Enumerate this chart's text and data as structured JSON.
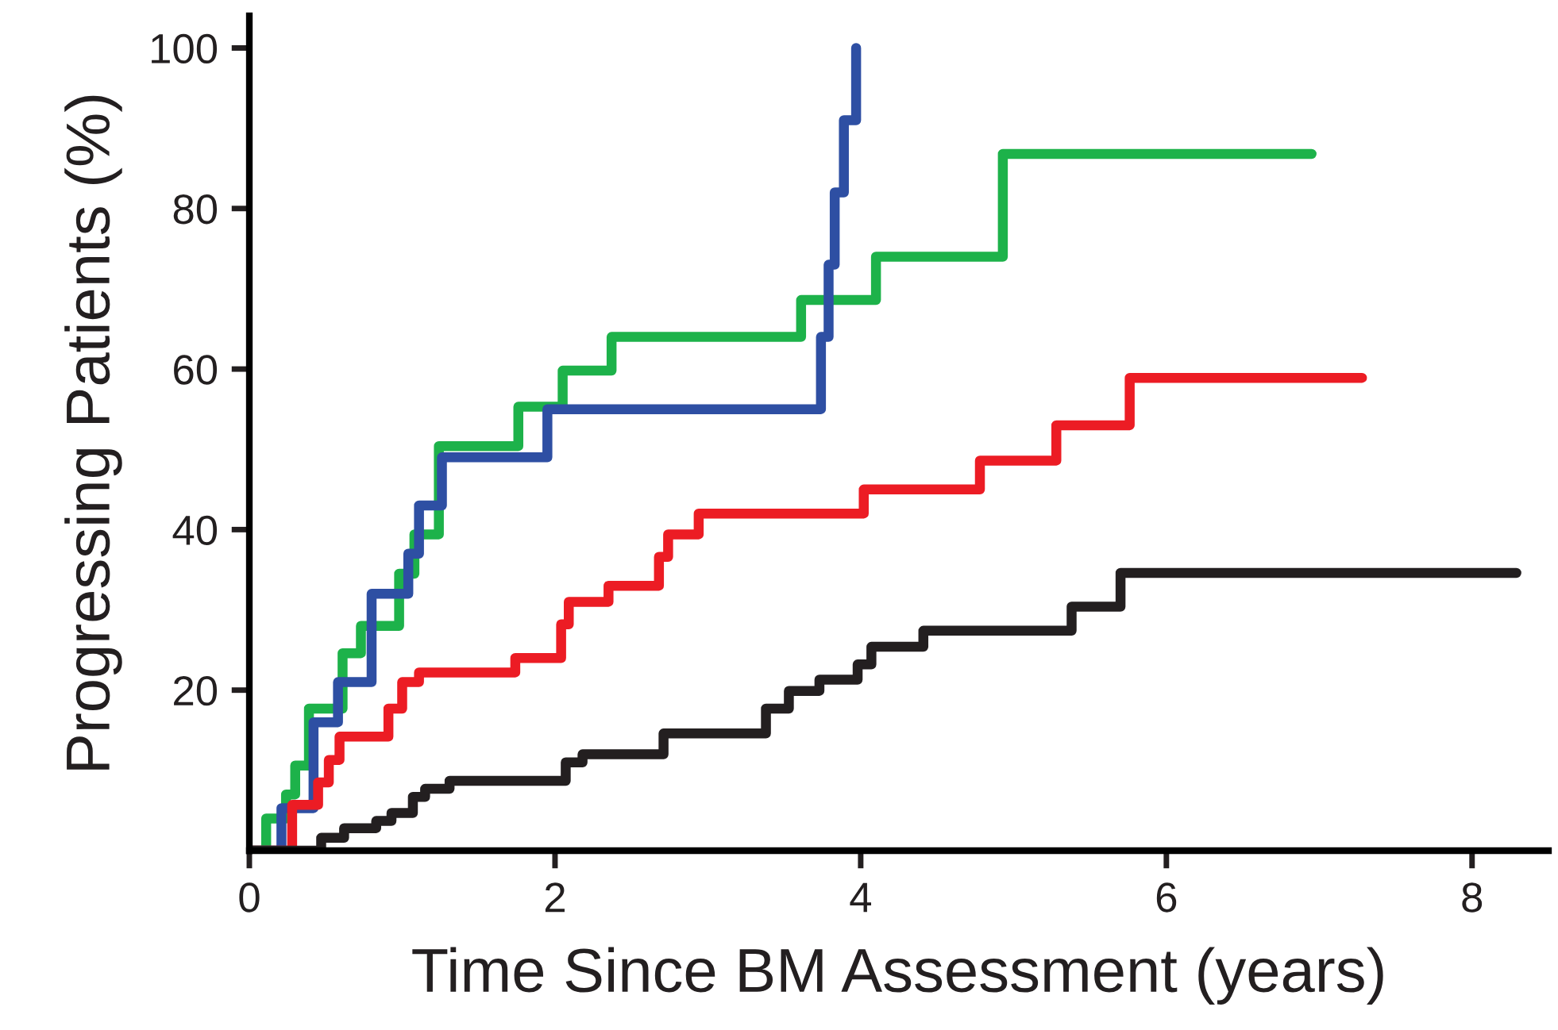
{
  "chart_data": {
    "type": "step",
    "xlabel": "Time Since BM Assessment (years)",
    "ylabel": "Progressing Patients (%)",
    "xlim": [
      0,
      8.5
    ],
    "ylim": [
      0,
      104
    ],
    "xticks": [
      0,
      2,
      4,
      6,
      8
    ],
    "yticks": [
      20,
      40,
      60,
      80,
      100
    ],
    "grid": false,
    "legend": false,
    "line_style": "solid",
    "marker": "none",
    "series": [
      {
        "color": "#1db24a",
        "x": [
          0,
          0.11,
          0.24,
          0.3,
          0.39,
          0.61,
          0.73,
          0.98,
          1.08,
          1.24,
          1.76,
          2.05,
          2.37,
          3.61,
          4.1,
          4.93,
          6.95
        ],
        "values": [
          0,
          4,
          7,
          10.6,
          17.7,
          24.6,
          28,
          34.5,
          39.4,
          50.4,
          55.3,
          59.8,
          64,
          68.6,
          74,
          86.8,
          86.8
        ]
      },
      {
        "color": "#2e4fa3",
        "x": [
          0,
          0.21,
          0.42,
          0.58,
          0.8,
          1.04,
          1.11,
          1.26,
          1.95,
          3.74,
          3.79,
          3.83,
          3.89,
          3.97
        ],
        "values": [
          0,
          5.3,
          16,
          21,
          32,
          37,
          43,
          49,
          55,
          64,
          73,
          82,
          91,
          100
        ]
      },
      {
        "color": "#ec1c24",
        "x": [
          0,
          0.28,
          0.45,
          0.52,
          0.59,
          0.91,
          1.0,
          1.11,
          1.74,
          2.04,
          2.09,
          2.35,
          2.68,
          2.74,
          2.94,
          4.02,
          4.78,
          5.28,
          5.76,
          7.28
        ],
        "values": [
          0,
          5.7,
          8.5,
          11.3,
          14.2,
          17.7,
          21,
          22.2,
          24,
          28.2,
          31,
          33,
          36.6,
          39.4,
          42,
          45,
          48.6,
          53,
          58.9,
          58.9
        ]
      },
      {
        "color": "#231f20",
        "x": [
          0,
          0.47,
          0.62,
          0.83,
          0.93,
          1.07,
          1.15,
          1.31,
          2.07,
          2.18,
          2.71,
          3.38,
          3.53,
          3.73,
          3.98,
          4.07,
          4.41,
          5.38,
          5.7,
          8.29
        ],
        "values": [
          0,
          1.6,
          2.8,
          3.7,
          4.7,
          6.7,
          7.7,
          8.7,
          11,
          12,
          14.6,
          17.7,
          19.9,
          21.3,
          23.2,
          25.4,
          27.4,
          30.4,
          34.6,
          34.6
        ]
      }
    ]
  }
}
